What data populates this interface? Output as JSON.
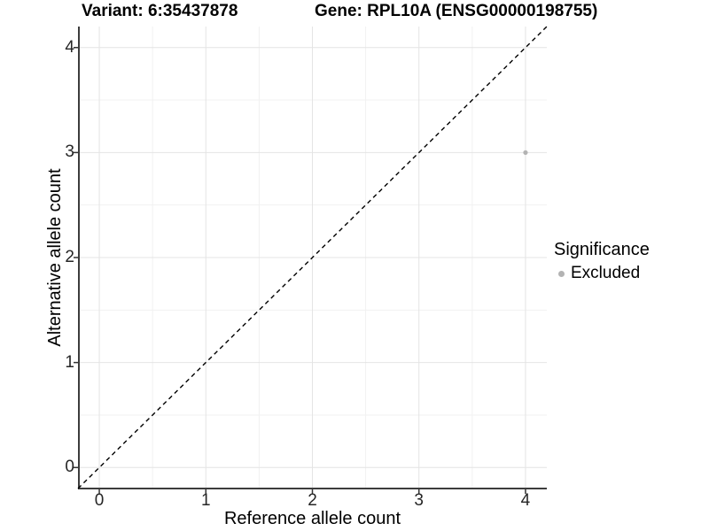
{
  "header": {
    "variant_title": "Variant: 6:35437878",
    "gene_title": "Gene: RPL10A (ENSG00000198755)"
  },
  "chart_data": {
    "type": "scatter",
    "title_left": "Variant: 6:35437878",
    "title_right": "Gene: RPL10A (ENSG00000198755)",
    "xlabel": "Reference allele count",
    "ylabel": "Alternative allele count",
    "xlim": [
      -0.2,
      4.2
    ],
    "ylim": [
      -0.2,
      4.2
    ],
    "xticks": [
      0,
      1,
      2,
      3,
      4
    ],
    "yticks": [
      0,
      1,
      2,
      3,
      4
    ],
    "grid": "major-and-minor",
    "minor_grid_at_midpoints": true,
    "points": [
      {
        "x": 4,
        "y": 3,
        "significance": "Excluded"
      }
    ],
    "identity_line": {
      "shown": true,
      "style": "dashed",
      "equation": "y = x"
    },
    "legend": {
      "position": "right",
      "title": "Significance",
      "entries": [
        {
          "label": "Excluded",
          "marker": "circle",
          "marker_color": "#b3b3b3"
        }
      ]
    },
    "colors": {
      "point": "#b3b3b3",
      "major_grid": "#e4e4e4",
      "minor_grid": "#f1f1f1",
      "axis_line": "#3c3c3c",
      "tick_mark": "#333333",
      "identity_line": "#000000",
      "tick_text": "#262626"
    }
  }
}
